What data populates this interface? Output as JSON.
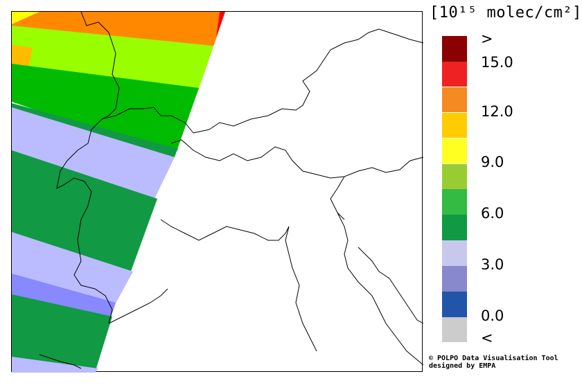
{
  "legend": {
    "units": "[10¹⁵ molec/cm²]",
    "colors": [
      "#8b0000",
      "#ee2222",
      "#f58a22",
      "#ffcc00",
      "#ffff22",
      "#99cc33",
      "#33bb44",
      "#119944",
      "#c8c8ee",
      "#8888cc",
      "#2255aa",
      "#cccccc"
    ],
    "labels": [
      ">",
      "15.0",
      "12.0",
      "9.0",
      "6.0",
      "3.0",
      "0.0",
      "<"
    ],
    "level_values": [
      ">",
      15.0,
      12.0,
      9.0,
      6.0,
      3.0,
      0.0,
      "<"
    ]
  },
  "swath_bands": [
    {
      "value_class": "red",
      "color": "#ff0000"
    },
    {
      "value_class": "orange",
      "color": "#ff8800"
    },
    {
      "value_class": "yellow",
      "color": "#ffff00"
    },
    {
      "value_class": "light-green",
      "color": "#99ff00"
    },
    {
      "value_class": "green",
      "color": "#00bb00"
    },
    {
      "value_class": "dark-green",
      "color": "#119944"
    },
    {
      "value_class": "lavender",
      "color": "#bbbbff"
    },
    {
      "value_class": "blue",
      "color": "#8888ff"
    }
  ],
  "credit": {
    "line1": "© POLPO Data Visualisation Tool",
    "line2": "designed by EMPA"
  }
}
